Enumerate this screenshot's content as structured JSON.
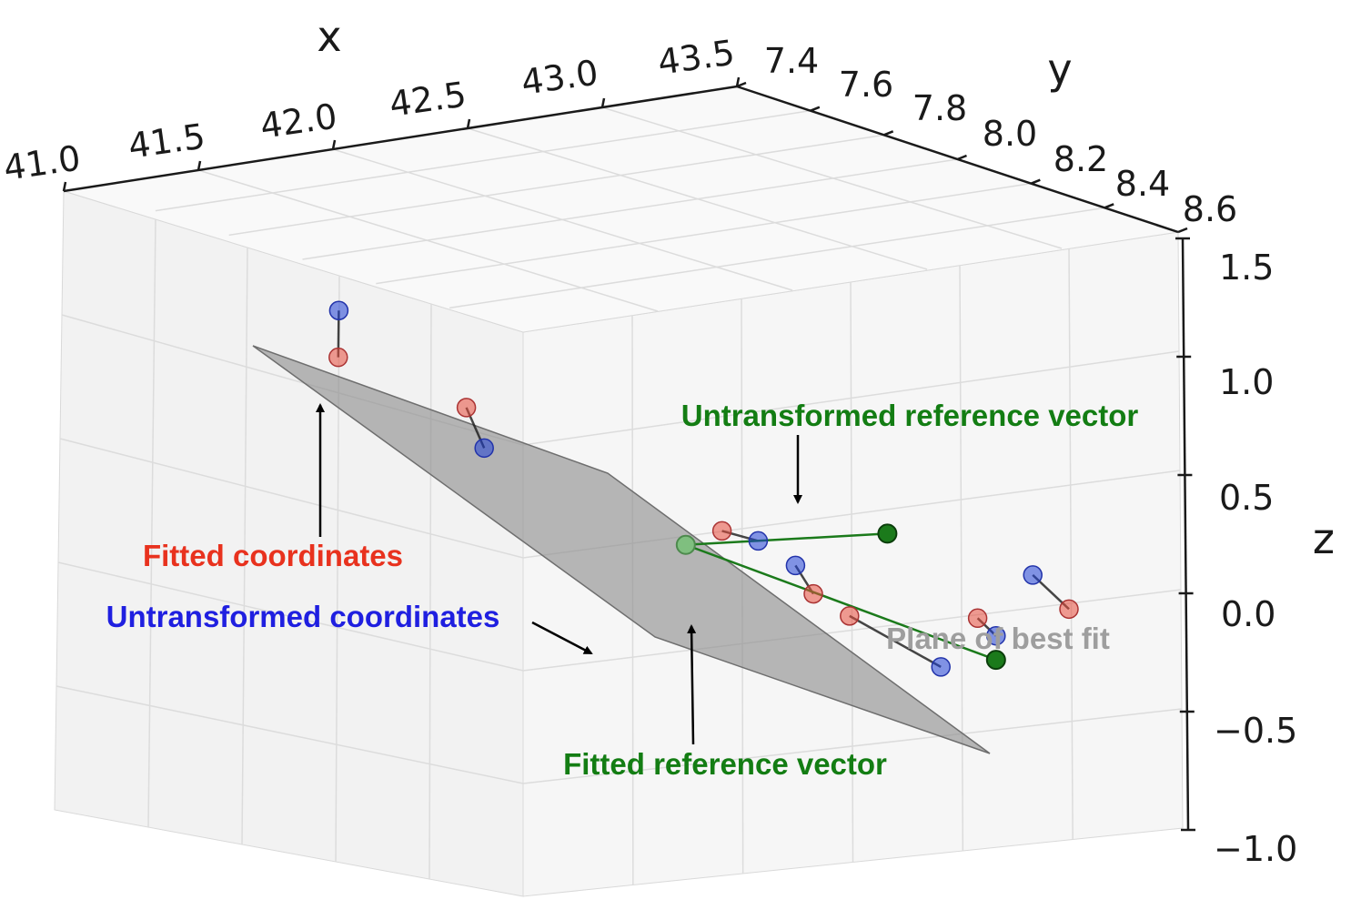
{
  "chart_data": {
    "type": "scatter",
    "projection": "3d",
    "title": "",
    "xlabel": "x",
    "ylabel": "y",
    "zlabel": "z",
    "xlim": [
      41.0,
      43.5
    ],
    "ylim": [
      7.4,
      8.6
    ],
    "zlim": [
      -1.0,
      1.5
    ],
    "x_ticks": [
      "41.0",
      "41.5",
      "42.0",
      "42.5",
      "43.0",
      "43.5"
    ],
    "y_ticks": [
      "7.4",
      "7.6",
      "7.8",
      "8.0",
      "8.2",
      "8.4",
      "8.6"
    ],
    "z_ticks": [
      "1.5",
      "1.0",
      "0.5",
      "0.0",
      "−0.5",
      "−1.0"
    ],
    "grid": true,
    "colors": {
      "fitted": "#e74c3c",
      "untransformed": "#1f3fd6",
      "reference": "#1b7a1b",
      "plane": "#8a8a8a"
    },
    "point_pairs": [
      {
        "fitted": {
          "x": 41.9,
          "y": 7.6,
          "z": 0.95
        },
        "untransformed": {
          "x": 42.2,
          "y": 7.5,
          "z": 1.25
        }
      },
      {
        "fitted": {
          "x": 42.3,
          "y": 7.7,
          "z": 0.8
        },
        "untransformed": {
          "x": 42.1,
          "y": 7.8,
          "z": 0.55
        }
      },
      {
        "fitted": {
          "x": 42.8,
          "y": 8.0,
          "z": 0.3
        },
        "untransformed": {
          "x": 42.7,
          "y": 8.1,
          "z": 0.2
        }
      },
      {
        "fitted": {
          "x": 43.0,
          "y": 8.1,
          "z": 0.05
        },
        "untransformed": {
          "x": 43.2,
          "y": 8.0,
          "z": 0.25
        }
      },
      {
        "fitted": {
          "x": 42.9,
          "y": 8.2,
          "z": -0.1
        },
        "untransformed": {
          "x": 43.1,
          "y": 8.3,
          "z": -0.3
        }
      },
      {
        "fitted": {
          "x": 43.3,
          "y": 8.3,
          "z": -0.05
        },
        "untransformed": {
          "x": 43.4,
          "y": 8.3,
          "z": -0.1
        }
      },
      {
        "fitted": {
          "x": 43.5,
          "y": 8.4,
          "z": 0.0
        },
        "untransformed": {
          "x": 43.6,
          "y": 8.3,
          "z": 0.2
        }
      }
    ],
    "reference_vectors": [
      {
        "name": "Fitted reference vector",
        "from": {
          "x": 42.9,
          "y": 7.9,
          "z": 0.3
        },
        "to": {
          "x": 43.4,
          "y": 8.3,
          "z": -0.2
        }
      },
      {
        "name": "Untransformed reference vector",
        "from": {
          "x": 42.9,
          "y": 7.9,
          "z": 0.3
        },
        "to": {
          "x": 43.7,
          "y": 8.0,
          "z": 0.5
        }
      }
    ],
    "annotations": [
      {
        "text": "Fitted coordinates",
        "color": "#e8321e"
      },
      {
        "text": "Untransformed coordinates",
        "color": "#1f1fe0"
      },
      {
        "text": "Untransformed reference vector",
        "color": "#137d13"
      },
      {
        "text": "Fitted reference vector",
        "color": "#137d13"
      },
      {
        "text": "Plane of best fit",
        "color": "#9e9e9e"
      }
    ]
  }
}
